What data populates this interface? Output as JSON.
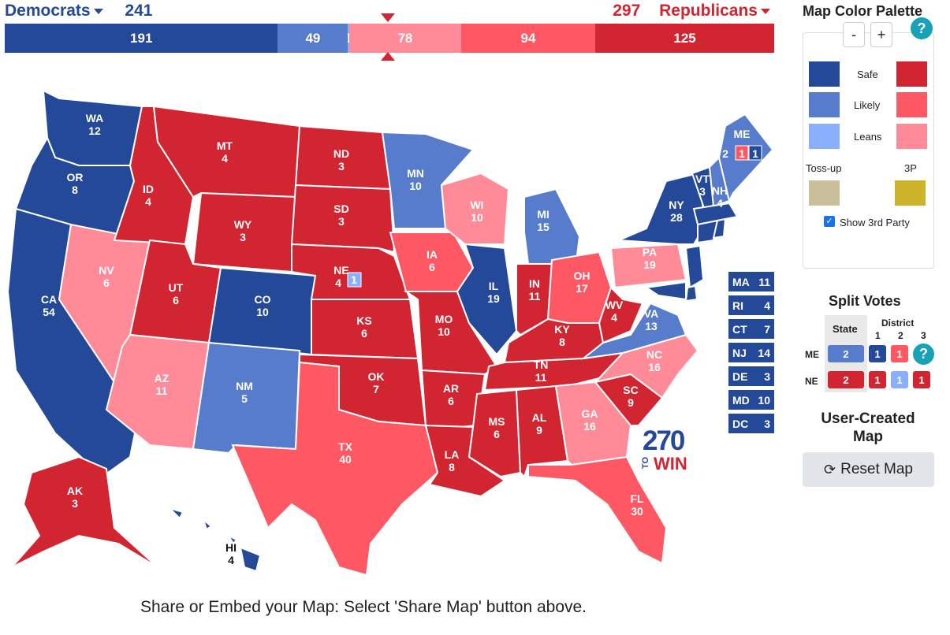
{
  "header": {
    "dem_label": "Democrats",
    "dem_total": "241",
    "rep_total": "297",
    "rep_label": "Republicans"
  },
  "bar": [
    {
      "value": "191",
      "color": "#244999",
      "weight": 191
    },
    {
      "value": "49",
      "color": "#577ccc",
      "weight": 49
    },
    {
      "value": "1",
      "color": "#8aafff",
      "weight": 1
    },
    {
      "value": "78",
      "color": "#ff8b98",
      "weight": 78
    },
    {
      "value": "94",
      "color": "#ff5865",
      "weight": 94
    },
    {
      "value": "125",
      "color": "#d22532",
      "weight": 125
    }
  ],
  "colors": {
    "safe_dem": "#244999",
    "likely_dem": "#577ccc",
    "leans_dem": "#8aafff",
    "safe_rep": "#d22532",
    "likely_rep": "#ff5865",
    "leans_rep": "#ff8b98",
    "tossup": "#c9c09b",
    "third_party": "#ccb32a"
  },
  "states": [
    {
      "abbr": "WA",
      "ev": "12",
      "rating": "safe_dem"
    },
    {
      "abbr": "OR",
      "ev": "8",
      "rating": "safe_dem"
    },
    {
      "abbr": "CA",
      "ev": "54",
      "rating": "safe_dem"
    },
    {
      "abbr": "NV",
      "ev": "6",
      "rating": "leans_rep"
    },
    {
      "abbr": "ID",
      "ev": "4",
      "rating": "safe_rep"
    },
    {
      "abbr": "MT",
      "ev": "4",
      "rating": "safe_rep"
    },
    {
      "abbr": "WY",
      "ev": "3",
      "rating": "safe_rep"
    },
    {
      "abbr": "UT",
      "ev": "6",
      "rating": "safe_rep"
    },
    {
      "abbr": "AZ",
      "ev": "11",
      "rating": "leans_rep"
    },
    {
      "abbr": "CO",
      "ev": "10",
      "rating": "safe_dem"
    },
    {
      "abbr": "NM",
      "ev": "5",
      "rating": "likely_dem"
    },
    {
      "abbr": "ND",
      "ev": "3",
      "rating": "safe_rep"
    },
    {
      "abbr": "SD",
      "ev": "3",
      "rating": "safe_rep"
    },
    {
      "abbr": "NE",
      "ev": "4",
      "rating": "safe_rep"
    },
    {
      "abbr": "KS",
      "ev": "6",
      "rating": "safe_rep"
    },
    {
      "abbr": "OK",
      "ev": "7",
      "rating": "safe_rep"
    },
    {
      "abbr": "TX",
      "ev": "40",
      "rating": "likely_rep"
    },
    {
      "abbr": "MN",
      "ev": "10",
      "rating": "likely_dem"
    },
    {
      "abbr": "IA",
      "ev": "6",
      "rating": "likely_rep"
    },
    {
      "abbr": "MO",
      "ev": "10",
      "rating": "safe_rep"
    },
    {
      "abbr": "AR",
      "ev": "6",
      "rating": "safe_rep"
    },
    {
      "abbr": "LA",
      "ev": "8",
      "rating": "safe_rep"
    },
    {
      "abbr": "WI",
      "ev": "10",
      "rating": "leans_rep"
    },
    {
      "abbr": "IL",
      "ev": "19",
      "rating": "safe_dem"
    },
    {
      "abbr": "MI",
      "ev": "15",
      "rating": "likely_dem"
    },
    {
      "abbr": "IN",
      "ev": "11",
      "rating": "safe_rep"
    },
    {
      "abbr": "OH",
      "ev": "17",
      "rating": "likely_rep"
    },
    {
      "abbr": "KY",
      "ev": "8",
      "rating": "safe_rep"
    },
    {
      "abbr": "TN",
      "ev": "11",
      "rating": "safe_rep"
    },
    {
      "abbr": "MS",
      "ev": "6",
      "rating": "safe_rep"
    },
    {
      "abbr": "AL",
      "ev": "9",
      "rating": "safe_rep"
    },
    {
      "abbr": "GA",
      "ev": "16",
      "rating": "leans_rep"
    },
    {
      "abbr": "FL",
      "ev": "30",
      "rating": "likely_rep"
    },
    {
      "abbr": "SC",
      "ev": "9",
      "rating": "safe_rep"
    },
    {
      "abbr": "NC",
      "ev": "16",
      "rating": "leans_rep"
    },
    {
      "abbr": "VA",
      "ev": "13",
      "rating": "likely_dem"
    },
    {
      "abbr": "WV",
      "ev": "4",
      "rating": "safe_rep"
    },
    {
      "abbr": "PA",
      "ev": "19",
      "rating": "leans_rep"
    },
    {
      "abbr": "NY",
      "ev": "28",
      "rating": "safe_dem"
    },
    {
      "abbr": "VT",
      "ev": "3",
      "rating": "safe_dem"
    },
    {
      "abbr": "NH",
      "ev": "4",
      "rating": "likely_dem"
    },
    {
      "abbr": "ME",
      "ev": "2",
      "rating": "likely_dem"
    },
    {
      "abbr": "AK",
      "ev": "3",
      "rating": "safe_rep"
    },
    {
      "abbr": "HI",
      "ev": "4",
      "rating": "safe_dem"
    }
  ],
  "map_extras": {
    "me_districts": [
      "2",
      "1",
      "1"
    ],
    "ne_district": "1"
  },
  "small_states": [
    {
      "abbr": "MA",
      "ev": "11"
    },
    {
      "abbr": "RI",
      "ev": "4"
    },
    {
      "abbr": "CT",
      "ev": "7"
    },
    {
      "abbr": "NJ",
      "ev": "14"
    },
    {
      "abbr": "DE",
      "ev": "3"
    },
    {
      "abbr": "MD",
      "ev": "10"
    },
    {
      "abbr": "DC",
      "ev": "3"
    }
  ],
  "logo": {
    "number": "270",
    "to": "TO",
    "win": "WIN"
  },
  "footer": "Share or Embed your Map: Select 'Share Map' button above.",
  "palette": {
    "title": "Map Color Palette",
    "minus": "-",
    "plus": "+",
    "help": "?",
    "safe": "Safe",
    "likely": "Likely",
    "leans": "Leans",
    "tossup": "Toss-up",
    "third": "3P",
    "show_third": "Show 3rd Party"
  },
  "split_votes": {
    "title": "Split Votes",
    "state_header": "State",
    "district_header": "District",
    "district_numbers": [
      "1",
      "2",
      "3"
    ],
    "help": "?",
    "rows": [
      {
        "state": "ME",
        "state_votes": "2",
        "districts": [
          "1",
          "1"
        ]
      },
      {
        "state": "NE",
        "state_votes": "2",
        "districts": [
          "1",
          "1",
          "1"
        ]
      }
    ]
  },
  "user_created": "User-Created Map",
  "reset_label": "Reset Map"
}
